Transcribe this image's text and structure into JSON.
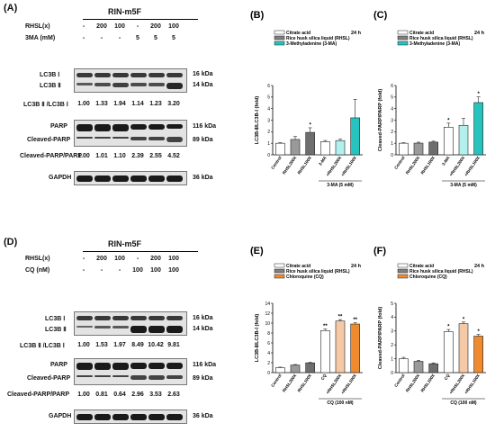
{
  "blotA": {
    "label": "(A)",
    "cell_line": "RIN-m5F",
    "rows": [
      {
        "label": "RHSL(x)",
        "values": [
          "-",
          "200",
          "100",
          "-",
          "200",
          "100"
        ]
      },
      {
        "label": "3MA (mM)",
        "values": [
          "-",
          "-",
          "-",
          "5",
          "5",
          "5"
        ]
      }
    ],
    "lc3_labels": [
      "LC3B Ⅰ",
      "LC3B Ⅱ"
    ],
    "lc3_kda": [
      "16 kDa",
      "14 kDa"
    ],
    "lc3_ratio_label": "LC3B Ⅱ /LC3B Ⅰ",
    "lc3_ratio": [
      "1.00",
      "1.33",
      "1.94",
      "1.14",
      "1.23",
      "3.20"
    ],
    "parp_labels": [
      "PARP",
      "Cleaved-PARP"
    ],
    "parp_kda": [
      "116 kDa",
      "89 kDa"
    ],
    "parp_ratio_label": "Cleaved-PARP/PARP",
    "parp_ratio": [
      "1.00",
      "1.01",
      "1.10",
      "2.39",
      "2.55",
      "4.52"
    ],
    "gapdh_label": "GAPDH",
    "gapdh_kda": "36 kDa"
  },
  "blotD": {
    "label": "(D)",
    "cell_line": "RIN-m5F",
    "rows": [
      {
        "label": "RHSL(x)",
        "values": [
          "-",
          "200",
          "100",
          "-",
          "200",
          "100"
        ]
      },
      {
        "label": "CQ (nM)",
        "values": [
          "-",
          "-",
          "-",
          "100",
          "100",
          "100"
        ]
      }
    ],
    "lc3_labels": [
      "LC3B Ⅰ",
      "LC3B Ⅱ"
    ],
    "lc3_kda": [
      "16 kDa",
      "14 kDa"
    ],
    "lc3_ratio_label": "LC3B Ⅱ /LC3B Ⅰ",
    "lc3_ratio": [
      "1.00",
      "1.53",
      "1.97",
      "8.49",
      "10.42",
      "9.81"
    ],
    "parp_labels": [
      "PARP",
      "Cleaved-PARP"
    ],
    "parp_kda": [
      "116 kDa",
      "89 kDa"
    ],
    "parp_ratio_label": "Cleaved-PARP/PARP",
    "parp_ratio": [
      "1.00",
      "0.81",
      "0.64",
      "2.96",
      "3.53",
      "2.63"
    ],
    "gapdh_label": "GAPDH",
    "gapdh_kda": "36 kDa"
  },
  "chart_data": [
    {
      "panel": "(B)",
      "type": "bar",
      "time": "24 h",
      "ylabel": "LC3B-Ⅱ/LC3B-Ⅰ (fold)",
      "ylim": [
        0,
        6
      ],
      "yticks": [
        0,
        1,
        2,
        3,
        4,
        5,
        6
      ],
      "categories": [
        "Control",
        "RHSL200X",
        "RHSL100X",
        "3-MA",
        "+RHSL200X",
        "+RHSL100X"
      ],
      "values": [
        1.0,
        1.33,
        1.94,
        1.14,
        1.23,
        3.2
      ],
      "errors": [
        0.05,
        0.25,
        0.4,
        0.1,
        0.12,
        1.6
      ],
      "significance": [
        "",
        "",
        "*",
        "",
        "",
        ""
      ],
      "bar_colors": [
        "#ffffff",
        "#9a9a9a",
        "#6e6e6e",
        "#ffffff",
        "#b2f0ee",
        "#27c3bf"
      ],
      "legend": [
        "Citrate acid",
        "Rice husk silica liquid (RHSL)",
        "3-Methyladenine (3-MA)"
      ],
      "legend_colors": [
        "#ffffff",
        "#808080",
        "#27c3bf"
      ],
      "group_label": "3-MA (5 mM)"
    },
    {
      "panel": "(C)",
      "type": "bar",
      "time": "24 h",
      "ylabel": "Cleaved-PARP/PARP (fold)",
      "ylim": [
        0,
        6
      ],
      "yticks": [
        0,
        1,
        2,
        3,
        4,
        5,
        6
      ],
      "categories": [
        "Control",
        "RHSL200X",
        "RHSL100X",
        "3-MA",
        "+RHSL200X",
        "+RHSL100X"
      ],
      "values": [
        1.0,
        1.01,
        1.1,
        2.39,
        2.55,
        4.52
      ],
      "errors": [
        0.05,
        0.08,
        0.08,
        0.35,
        0.6,
        0.5
      ],
      "significance": [
        "",
        "",
        "",
        "*",
        "",
        "*"
      ],
      "bar_colors": [
        "#ffffff",
        "#9a9a9a",
        "#6e6e6e",
        "#ffffff",
        "#b2f0ee",
        "#27c3bf"
      ],
      "legend": [
        "Citrate acid",
        "Rice husk silica liquid (RHSL)",
        "3-Methyladenine (3-MA)"
      ],
      "legend_colors": [
        "#ffffff",
        "#808080",
        "#27c3bf"
      ],
      "group_label": "3-MA (5 mM)"
    },
    {
      "panel": "(E)",
      "type": "bar",
      "time": "24 h",
      "ylabel": "LC3B-Ⅱ/LC3B-Ⅰ (fold)",
      "ylim": [
        0,
        14
      ],
      "yticks": [
        0,
        2,
        4,
        6,
        8,
        10,
        12,
        14
      ],
      "categories": [
        "Control",
        "RHSL200X",
        "RHSL100X",
        "CQ",
        "+RHSL200X",
        "+RHSL100X"
      ],
      "values": [
        1.0,
        1.53,
        1.97,
        8.49,
        10.42,
        9.81
      ],
      "errors": [
        0.1,
        0.1,
        0.1,
        0.3,
        0.3,
        0.25
      ],
      "significance": [
        "",
        "",
        "",
        "**",
        "**",
        "**"
      ],
      "bar_colors": [
        "#ffffff",
        "#9a9a9a",
        "#6e6e6e",
        "#ffffff",
        "#f6c9a6",
        "#f08a2e"
      ],
      "legend": [
        "Citrate acid",
        "Rice husk silica liquid (RHSL)",
        "Chloroquine (CQ)"
      ],
      "legend_colors": [
        "#ffffff",
        "#808080",
        "#f08a2e"
      ],
      "group_label": "CQ (100 nM)"
    },
    {
      "panel": "(F)",
      "type": "bar",
      "time": "24 h",
      "ylabel": "Cleaved-PARP/PARP (fold)",
      "ylim": [
        0,
        5
      ],
      "yticks": [
        0,
        1,
        2,
        3,
        4,
        5
      ],
      "categories": [
        "Control",
        "RHSL200X",
        "RHSL100X",
        "CQ",
        "+RHSL200X",
        "+RHSL100X"
      ],
      "values": [
        1.0,
        0.81,
        0.64,
        2.96,
        3.53,
        2.63
      ],
      "errors": [
        0.1,
        0.08,
        0.06,
        0.15,
        0.12,
        0.12
      ],
      "significance": [
        "",
        "",
        "",
        "*",
        "*",
        "*"
      ],
      "bar_colors": [
        "#ffffff",
        "#9a9a9a",
        "#6e6e6e",
        "#ffffff",
        "#f6c9a6",
        "#f08a2e"
      ],
      "legend": [
        "Citrate acid",
        "Rice husk silica liquid (RHSL)",
        "Chloroquine (CQ)"
      ],
      "legend_colors": [
        "#ffffff",
        "#808080",
        "#f08a2e"
      ],
      "group_label": "CQ (100 nM)"
    }
  ]
}
